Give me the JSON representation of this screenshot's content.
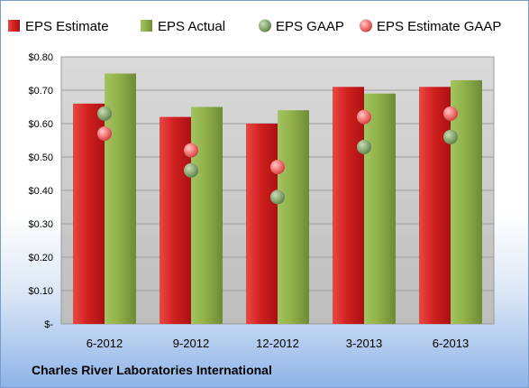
{
  "company": "Charles River Laboratories International",
  "colors": {
    "eps_estimate": "#d42020",
    "eps_actual": "#8fb04a",
    "eps_gaap": "#8aa872",
    "eps_estimate_gaap": "#ef8080",
    "plot_bg": "#c4c4c4"
  },
  "chart_data": {
    "type": "bar",
    "title": "",
    "xlabel": "",
    "ylabel": "",
    "categories": [
      "6-2012",
      "9-2012",
      "12-2012",
      "3-2013",
      "6-2013"
    ],
    "ylim": [
      0,
      0.8
    ],
    "yticks": [
      0,
      0.1,
      0.2,
      0.3,
      0.4,
      0.5,
      0.6,
      0.7,
      0.8
    ],
    "ytick_labels": [
      "$-",
      "$0.10",
      "$0.20",
      "$0.30",
      "$0.40",
      "$0.50",
      "$0.60",
      "$0.70",
      "$0.80"
    ],
    "grid": true,
    "legend_position": "top",
    "series": [
      {
        "name": "EPS Estimate",
        "kind": "bar",
        "values": [
          0.66,
          0.62,
          0.6,
          0.71,
          0.71
        ]
      },
      {
        "name": "EPS Actual",
        "kind": "bar",
        "values": [
          0.75,
          0.65,
          0.64,
          0.69,
          0.73
        ]
      },
      {
        "name": "EPS GAAP",
        "kind": "point",
        "values": [
          0.63,
          0.46,
          0.38,
          0.53,
          0.56
        ]
      },
      {
        "name": "EPS Estimate GAAP",
        "kind": "point",
        "values": [
          0.57,
          0.52,
          0.47,
          0.62,
          0.63
        ]
      }
    ]
  }
}
